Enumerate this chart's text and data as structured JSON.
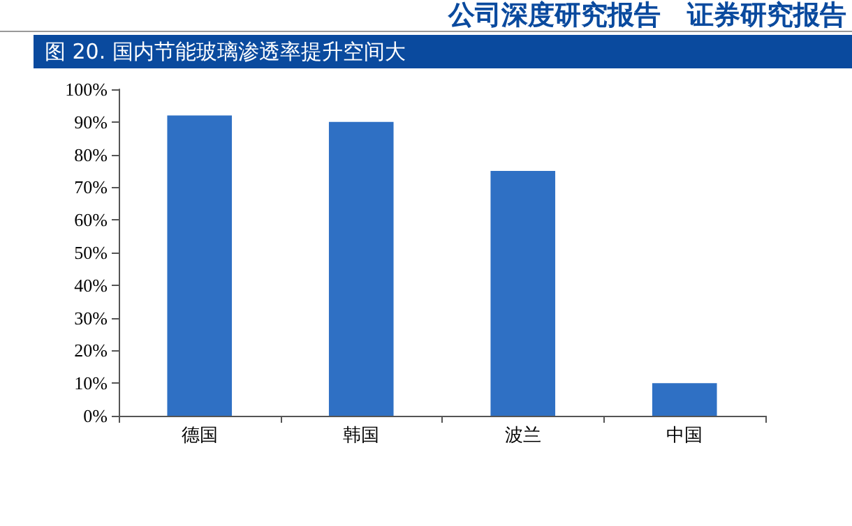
{
  "chart_data": {
    "type": "bar",
    "title": "图 20. 国内节能玻璃渗透率提升空间大",
    "annotations": [
      "公司深度研究报告　证券研究报告"
    ],
    "categories": [
      "德国",
      "韩国",
      "波兰",
      "中国"
    ],
    "values": [
      92,
      90,
      75,
      10
    ],
    "color": "#2f70c4",
    "ylim": [
      0,
      100
    ],
    "yticks": [
      {
        "value": 0,
        "label": "0%"
      },
      {
        "value": 10,
        "label": "10%"
      },
      {
        "value": 20,
        "label": "20%"
      },
      {
        "value": 30,
        "label": "30%"
      },
      {
        "value": 40,
        "label": "40%"
      },
      {
        "value": 50,
        "label": "50%"
      },
      {
        "value": 60,
        "label": "60%"
      },
      {
        "value": 70,
        "label": "70%"
      },
      {
        "value": 80,
        "label": "80%"
      },
      {
        "value": 90,
        "label": "90%"
      },
      {
        "value": 100,
        "label": "100%"
      }
    ],
    "grid": false
  }
}
